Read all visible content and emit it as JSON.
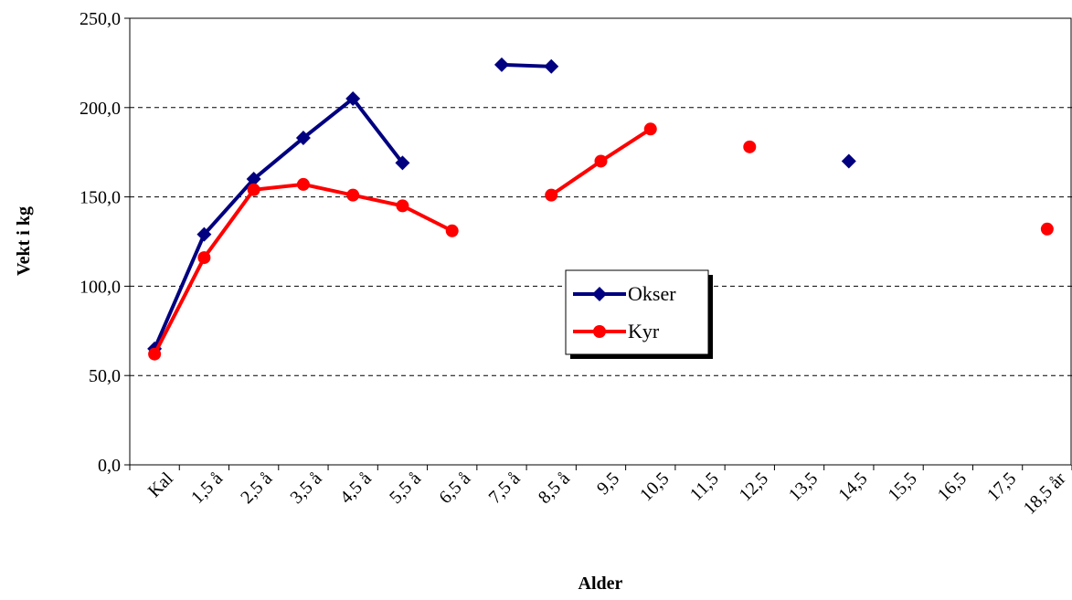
{
  "chart_data": {
    "type": "line",
    "ylabel": "Vekt i kg",
    "xlabel": "Alder",
    "categories": [
      "Kal",
      "1,5 å",
      "2,5 å",
      "3,5 å",
      "4,5 å",
      "5,5 å",
      "6,5 å",
      "7,5 å",
      "8,5 å",
      "9,5",
      "10,5",
      "11,5",
      "12,5",
      "13,5",
      "14,5",
      "15,5",
      "16,5",
      "17,5",
      "18,5 år"
    ],
    "series": [
      {
        "name": "Okser",
        "color": "#000080",
        "marker": "diamond",
        "values": [
          65,
          129,
          160,
          183,
          205,
          169,
          null,
          224,
          223,
          null,
          null,
          null,
          null,
          null,
          170,
          null,
          null,
          null,
          null
        ]
      },
      {
        "name": "Kyr",
        "color": "#ff0000",
        "marker": "circle",
        "values": [
          62,
          116,
          154,
          157,
          151,
          145,
          131,
          null,
          151,
          170,
          188,
          null,
          178,
          null,
          null,
          null,
          null,
          null,
          132
        ]
      }
    ],
    "ylim": [
      0,
      250
    ],
    "yticks": [
      {
        "value": 0,
        "label": "0,0"
      },
      {
        "value": 50,
        "label": "50,0"
      },
      {
        "value": 100,
        "label": "100,0"
      },
      {
        "value": 150,
        "label": "150,0"
      },
      {
        "value": 200,
        "label": "200,0"
      },
      {
        "value": 250,
        "label": "250,0"
      }
    ],
    "grid": true,
    "legend": "center"
  }
}
